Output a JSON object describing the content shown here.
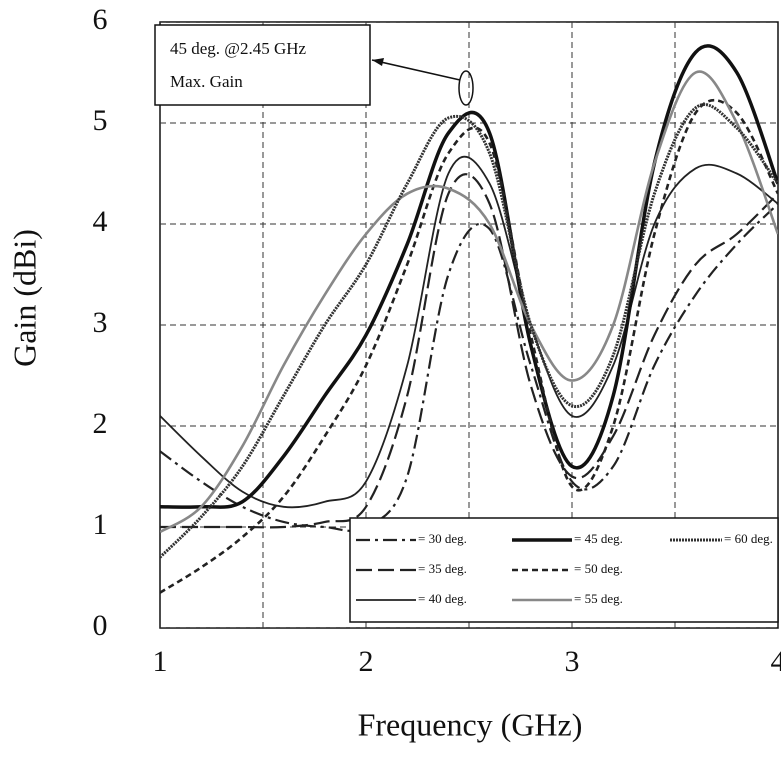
{
  "chart_data": {
    "type": "line",
    "xlabel": "Frequency (GHz)",
    "ylabel": "Gain (dBi)",
    "annotations": [
      "45 deg.   @2.45 GHz",
      "Max. Gain"
    ],
    "xlim": [
      1,
      4
    ],
    "ylim": [
      0,
      6
    ],
    "xticks": [
      1,
      2,
      3,
      4
    ],
    "yticks": [
      0,
      1,
      2,
      3,
      4,
      5,
      6
    ],
    "xgrid": [
      1.5,
      2,
      2.5,
      3,
      3.5
    ],
    "grid": true,
    "x": [
      1,
      1.2,
      1.4,
      1.6,
      1.8,
      2.0,
      2.2,
      2.4,
      2.6,
      2.8,
      3.0,
      3.2,
      3.4,
      3.6,
      3.8,
      4.0
    ],
    "series": [
      {
        "name": "= 30 deg.",
        "color": "#222",
        "dash": "14 5 3 5",
        "width": 2.2,
        "values": [
          1.75,
          1.45,
          1.2,
          1.05,
          1.0,
          1.0,
          1.5,
          3.5,
          3.95,
          2.6,
          1.45,
          1.6,
          2.6,
          3.3,
          3.8,
          4.2
        ]
      },
      {
        "name": "= 35 deg.",
        "color": "#222",
        "dash": "16 6",
        "width": 2.2,
        "values": [
          1.0,
          1.0,
          1.0,
          1.0,
          1.05,
          1.2,
          2.3,
          4.3,
          4.2,
          2.4,
          1.5,
          1.9,
          2.9,
          3.6,
          3.9,
          4.3
        ]
      },
      {
        "name": "= 40 deg.",
        "color": "#222",
        "dash": "",
        "width": 1.8,
        "values": [
          2.1,
          1.7,
          1.35,
          1.2,
          1.25,
          1.45,
          2.6,
          4.5,
          4.4,
          3.0,
          2.1,
          2.6,
          4.0,
          4.55,
          4.5,
          4.2
        ]
      },
      {
        "name": "= 45 deg.",
        "color": "#111",
        "dash": "",
        "width": 3.5,
        "values": [
          1.2,
          1.2,
          1.25,
          1.7,
          2.3,
          2.9,
          3.8,
          4.9,
          4.9,
          2.8,
          1.6,
          2.3,
          4.6,
          5.7,
          5.5,
          4.4
        ]
      },
      {
        "name": "= 50 deg.",
        "color": "#222",
        "dash": "6 4",
        "width": 2.6,
        "values": [
          0.35,
          0.6,
          0.9,
          1.3,
          1.9,
          2.6,
          3.6,
          4.7,
          4.8,
          2.9,
          1.4,
          2.0,
          3.9,
          5.1,
          5.1,
          4.3
        ]
      },
      {
        "name": "= 55 deg.",
        "color": "#888",
        "dash": "",
        "width": 2.6,
        "values": [
          0.95,
          1.2,
          1.8,
          2.6,
          3.3,
          3.9,
          4.3,
          4.35,
          4.0,
          3.0,
          2.45,
          3.0,
          4.6,
          5.5,
          5.0,
          3.9
        ]
      },
      {
        "name": "= 60 deg.",
        "color": "#333",
        "dash": "2 1",
        "width": 3,
        "values": [
          0.7,
          1.1,
          1.6,
          2.3,
          3.0,
          3.6,
          4.4,
          5.05,
          4.7,
          3.0,
          2.2,
          2.7,
          4.3,
          5.15,
          4.95,
          4.4
        ]
      }
    ]
  }
}
